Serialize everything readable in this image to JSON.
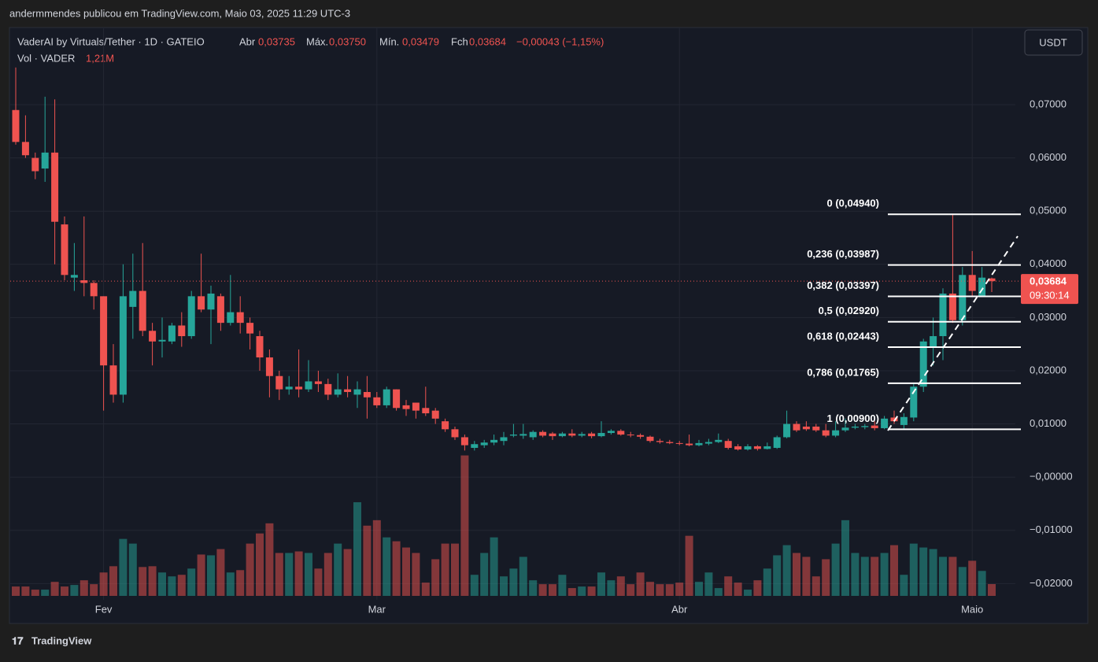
{
  "header": {
    "publisher": "andermmendes publicou em TradingView.com, Maio 03, 2025 11:29 UTC-3",
    "symbol": "VaderAI by Virtuals/Tether · 1D · GATEIO",
    "open_label": "Abr",
    "open": "0,03735",
    "high_label": "Máx.",
    "high": "0,03750",
    "low_label": "Mín.",
    "low": "0,03479",
    "close_label": "Fch",
    "close": "0,03684",
    "change": "−0,00043 (−1,15%)",
    "vol_label": "Vol · VADER",
    "vol": "1,21M",
    "currency": "USDT"
  },
  "footer": {
    "brand": "TradingView"
  },
  "chart_data": {
    "type": "candlestick",
    "categories": [
      null,
      null,
      null,
      null,
      null,
      null,
      null,
      null,
      null,
      "Fev",
      null,
      null,
      null,
      null,
      null,
      null,
      null,
      null,
      null,
      null,
      null,
      null,
      null,
      null,
      null,
      null,
      null,
      null,
      null,
      null,
      null,
      null,
      null,
      null,
      null,
      null,
      null,
      "Mar",
      null,
      null,
      null,
      null,
      null,
      null,
      null,
      null,
      null,
      null,
      null,
      null,
      null,
      null,
      null,
      null,
      null,
      null,
      null,
      null,
      null,
      null,
      null,
      null,
      null,
      null,
      null,
      null,
      null,
      null,
      "Abr",
      null,
      null,
      null,
      null,
      null,
      null,
      null,
      null,
      null,
      null,
      null,
      null,
      null,
      null,
      null,
      null,
      null,
      null,
      null,
      null,
      null,
      null,
      null,
      null,
      null,
      null,
      null,
      null,
      null,
      "Maio",
      null,
      null
    ],
    "open": [
      0.069,
      0.063,
      0.06,
      0.058,
      0.061,
      0.0475,
      0.0375,
      0.037,
      0.0365,
      0.034,
      0.021,
      0.0155,
      0.032,
      0.035,
      0.0275,
      0.0255,
      0.0255,
      0.0285,
      0.0265,
      0.034,
      0.0315,
      0.034,
      0.029,
      0.031,
      0.029,
      0.0265,
      0.0225,
      0.019,
      0.0165,
      0.017,
      0.0165,
      0.018,
      0.0175,
      0.0155,
      0.0165,
      0.0155,
      0.016,
      0.015,
      0.0135,
      0.0165,
      0.0135,
      0.014,
      0.013,
      0.0125,
      0.0105,
      0.009,
      0.0075,
      0.0055,
      0.006,
      0.0065,
      0.0068,
      0.0078,
      0.0078,
      0.0075,
      0.0085,
      0.0082,
      0.0077,
      0.0082,
      0.0078,
      0.0082,
      0.0077,
      0.0083,
      0.0087,
      0.008,
      0.0079,
      0.0076,
      0.0068,
      0.0066,
      0.0064,
      0.0063,
      0.006,
      0.0063,
      0.0066,
      0.0068,
      0.0058,
      0.0052,
      0.0058,
      0.0053,
      0.0055,
      0.0075,
      0.01,
      0.0095,
      0.0095,
      0.0088,
      0.0078,
      0.0088,
      0.0093,
      0.0094,
      0.0097,
      0.0092,
      0.0112,
      0.0098,
      0.0112,
      0.017,
      0.0245,
      0.0265,
      0.0345,
      0.0295,
      0.038,
      0.034,
      0.03735
    ],
    "high": [
      0.077,
      0.068,
      0.061,
      0.0715,
      0.071,
      0.049,
      0.044,
      0.049,
      0.037,
      0.034,
      0.025,
      0.04,
      0.042,
      0.044,
      0.029,
      0.03,
      0.029,
      0.031,
      0.035,
      0.042,
      0.036,
      0.0345,
      0.038,
      0.034,
      0.03,
      0.0275,
      0.024,
      0.02,
      0.019,
      0.024,
      0.022,
      0.02,
      0.0185,
      0.0195,
      0.019,
      0.018,
      0.019,
      0.016,
      0.017,
      0.0165,
      0.0145,
      0.014,
      0.017,
      0.013,
      0.011,
      0.0095,
      0.008,
      0.0068,
      0.007,
      0.008,
      0.0085,
      0.01,
      0.01,
      0.0088,
      0.0088,
      0.0085,
      0.0085,
      0.009,
      0.0085,
      0.0085,
      0.0105,
      0.009,
      0.009,
      0.0085,
      0.0082,
      0.0078,
      0.0072,
      0.007,
      0.0068,
      0.008,
      0.007,
      0.0072,
      0.0082,
      0.0072,
      0.0062,
      0.0062,
      0.006,
      0.0065,
      0.0078,
      0.0125,
      0.0105,
      0.0105,
      0.01,
      0.01,
      0.0105,
      0.011,
      0.01,
      0.01,
      0.0105,
      0.0115,
      0.0125,
      0.012,
      0.0175,
      0.026,
      0.03,
      0.0355,
      0.0494,
      0.0395,
      0.0425,
      0.0395,
      0.0375
    ],
    "low": [
      0.0625,
      0.06,
      0.056,
      0.0555,
      0.04,
      0.037,
      0.035,
      0.034,
      0.0315,
      0.0125,
      0.014,
      0.014,
      0.026,
      0.0265,
      0.021,
      0.0225,
      0.025,
      0.0245,
      0.026,
      0.031,
      0.025,
      0.0275,
      0.0285,
      0.027,
      0.024,
      0.02,
      0.015,
      0.0145,
      0.0155,
      0.015,
      0.016,
      0.016,
      0.0145,
      0.015,
      0.015,
      0.013,
      0.011,
      0.013,
      0.013,
      0.0125,
      0.0115,
      0.011,
      0.0115,
      0.01,
      0.0085,
      0.007,
      0.005,
      0.005,
      0.0055,
      0.006,
      0.006,
      0.0075,
      0.0072,
      0.007,
      0.0075,
      0.007,
      0.0075,
      0.0075,
      0.0075,
      0.0073,
      0.0075,
      0.008,
      0.0078,
      0.0075,
      0.0072,
      0.0065,
      0.0063,
      0.0062,
      0.006,
      0.0058,
      0.0058,
      0.006,
      0.0064,
      0.0052,
      0.005,
      0.005,
      0.005,
      0.0052,
      0.0053,
      0.0073,
      0.0085,
      0.0087,
      0.0085,
      0.0075,
      0.0075,
      0.0085,
      0.009,
      0.009,
      0.0088,
      0.009,
      0.01,
      0.009,
      0.0105,
      0.016,
      0.021,
      0.022,
      0.029,
      0.0285,
      0.034,
      0.034,
      0.03479
    ],
    "close": [
      0.063,
      0.0605,
      0.0575,
      0.061,
      0.048,
      0.038,
      0.038,
      0.0365,
      0.034,
      0.021,
      0.0155,
      0.034,
      0.035,
      0.0275,
      0.0255,
      0.0258,
      0.0285,
      0.0265,
      0.034,
      0.0315,
      0.0345,
      0.029,
      0.031,
      0.029,
      0.027,
      0.0225,
      0.019,
      0.0165,
      0.017,
      0.0165,
      0.018,
      0.0175,
      0.0155,
      0.0165,
      0.016,
      0.0165,
      0.015,
      0.0135,
      0.0165,
      0.013,
      0.0128,
      0.0125,
      0.012,
      0.011,
      0.009,
      0.0075,
      0.006,
      0.0062,
      0.0065,
      0.007,
      0.0075,
      0.008,
      0.0081,
      0.0085,
      0.0078,
      0.0077,
      0.0082,
      0.0078,
      0.0081,
      0.0077,
      0.0083,
      0.0087,
      0.008,
      0.0079,
      0.0076,
      0.0068,
      0.0066,
      0.0064,
      0.0063,
      0.006,
      0.0064,
      0.0066,
      0.007,
      0.0055,
      0.0052,
      0.0058,
      0.0053,
      0.0058,
      0.0075,
      0.01,
      0.0088,
      0.009,
      0.0088,
      0.0078,
      0.0088,
      0.0093,
      0.0095,
      0.0096,
      0.0092,
      0.011,
      0.0105,
      0.0113,
      0.017,
      0.0255,
      0.0265,
      0.0345,
      0.0295,
      0.038,
      0.035,
      0.0375,
      0.03684
    ],
    "volume": [
      0.96,
      0.96,
      0.64,
      0.64,
      1.44,
      0.96,
      1.12,
      1.6,
      1.2,
      2.4,
      3.04,
      5.84,
      5.36,
      2.96,
      3.04,
      2.4,
      2,
      2.16,
      2.8,
      4.24,
      4.16,
      4.8,
      2.4,
      2.64,
      5.36,
      6.4,
      7.44,
      4.4,
      4.4,
      4.56,
      4.4,
      2.8,
      4.4,
      5.36,
      4.8,
      9.6,
      7.2,
      7.76,
      6,
      5.6,
      4.96,
      4.4,
      1.36,
      3.76,
      5.36,
      5.36,
      14.4,
      2.16,
      4.4,
      6,
      2,
      2.8,
      4,
      1.6,
      1.2,
      1.2,
      2.16,
      0.8,
      0.96,
      0.96,
      2.4,
      1.6,
      2,
      1.2,
      2.4,
      1.44,
      1.2,
      1.2,
      1.36,
      6.16,
      1.44,
      2.4,
      0.8,
      2,
      1.36,
      0.64,
      1.6,
      2.8,
      4.16,
      5.2,
      4.4,
      4,
      2,
      3.76,
      5.36,
      7.76,
      4.4,
      4,
      4,
      4.4,
      5.2,
      2.16,
      5.36,
      4.96,
      4.8,
      4,
      4,
      2.96,
      3.6,
      2.56,
      1.21
    ],
    "up_color": "#26a69a",
    "down_color": "#ef5350",
    "ylim": [
      -0.0272,
      0.0845
    ],
    "yticks": [
      {
        "value": 0.07,
        "label": "0,07000"
      },
      {
        "value": 0.06,
        "label": "0,06000"
      },
      {
        "value": 0.05,
        "label": "0,05000"
      },
      {
        "value": 0.04,
        "label": "0,04000"
      },
      {
        "value": 0.03,
        "label": "0,03000"
      },
      {
        "value": 0.02,
        "label": "0,02000"
      },
      {
        "value": 0.01,
        "label": "0,01000"
      },
      {
        "value": 0,
        "label": "−0,00000"
      },
      {
        "value": -0.01,
        "label": "−0,01000"
      },
      {
        "value": -0.02,
        "label": "−0,02000"
      }
    ],
    "grid": true,
    "last_price": {
      "value": 0.03684,
      "label": "0,03684"
    },
    "countdown": "09:30:14",
    "fib_levels": [
      {
        "value": 0.0494,
        "label": "0 (0,04940)"
      },
      {
        "value": 0.03987,
        "label": "0,236 (0,03987)"
      },
      {
        "value": 0.03397,
        "label": "0,382 (0,03397)"
      },
      {
        "value": 0.0292,
        "label": "0,5 (0,02920)"
      },
      {
        "value": 0.02443,
        "label": "0,618 (0,02443)"
      },
      {
        "value": 0.01765,
        "label": "0,786 (0,01765)"
      },
      {
        "value": 0.009,
        "label": "1 (0,00900)"
      }
    ]
  }
}
